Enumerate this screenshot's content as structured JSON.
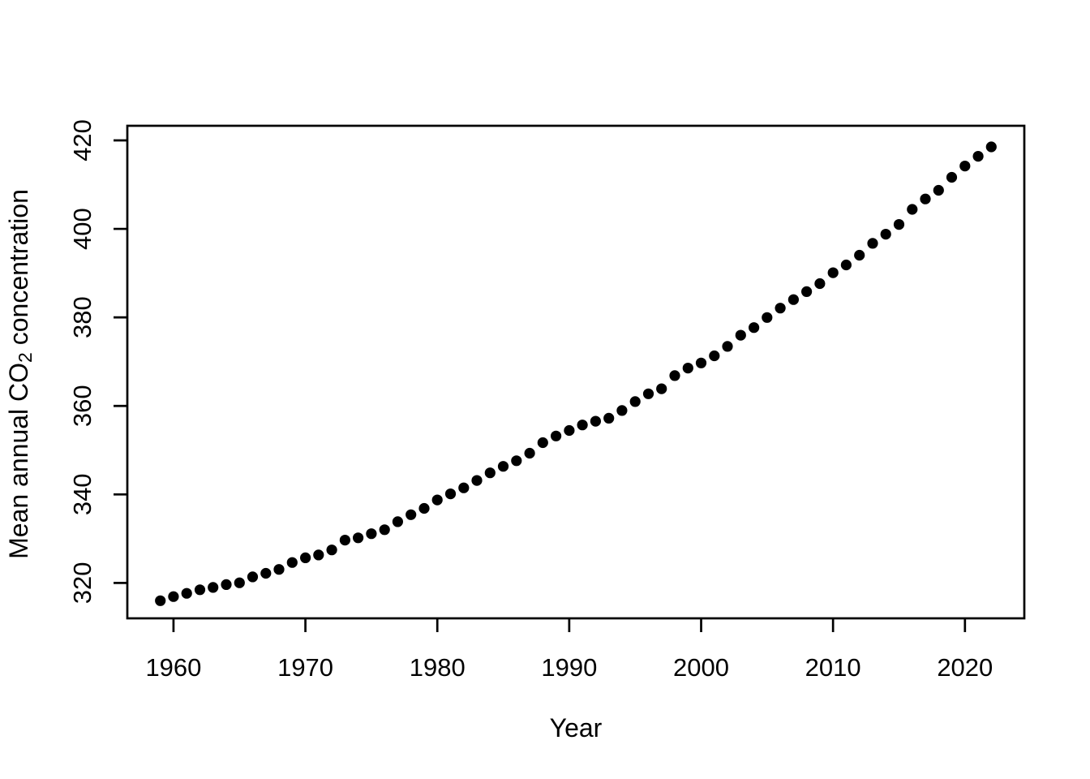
{
  "page": {
    "background_color": "#ffffff",
    "foreground_color": "#000000"
  },
  "chart_data": {
    "type": "scatter",
    "title": "",
    "xlabel": "Year",
    "ylabel": "Mean annual CO₂ concentration",
    "ylabel_parts": {
      "pre": "Mean annual CO",
      "sub": "2",
      "post": " concentration"
    },
    "x_ticks": [
      1960,
      1970,
      1980,
      1990,
      2000,
      2010,
      2020
    ],
    "y_ticks": [
      320,
      340,
      360,
      380,
      400,
      420
    ],
    "xlim": [
      1956.5,
      2024.5
    ],
    "ylim": [
      312.0,
      423.3
    ],
    "grid": false,
    "legend": "none",
    "point_style": "filled-circle",
    "point_color": "#000000",
    "x": [
      1959,
      1960,
      1961,
      1962,
      1963,
      1964,
      1965,
      1966,
      1967,
      1968,
      1969,
      1970,
      1971,
      1972,
      1973,
      1974,
      1975,
      1976,
      1977,
      1978,
      1979,
      1980,
      1981,
      1982,
      1983,
      1984,
      1985,
      1986,
      1987,
      1988,
      1989,
      1990,
      1991,
      1992,
      1993,
      1994,
      1995,
      1996,
      1997,
      1998,
      1999,
      2000,
      2001,
      2002,
      2003,
      2004,
      2005,
      2006,
      2007,
      2008,
      2009,
      2010,
      2011,
      2012,
      2013,
      2014,
      2015,
      2016,
      2017,
      2018,
      2019,
      2020,
      2021,
      2022
    ],
    "y": [
      315.98,
      316.91,
      317.64,
      318.45,
      318.99,
      319.62,
      320.04,
      321.37,
      322.18,
      323.05,
      324.62,
      325.68,
      326.32,
      327.46,
      329.68,
      330.19,
      331.12,
      332.03,
      333.84,
      335.41,
      336.84,
      338.76,
      340.12,
      341.48,
      343.15,
      344.87,
      346.35,
      347.61,
      349.31,
      351.69,
      353.2,
      354.45,
      355.7,
      356.54,
      357.21,
      358.96,
      360.97,
      362.74,
      363.88,
      366.84,
      368.54,
      369.71,
      371.32,
      373.45,
      375.98,
      377.7,
      379.98,
      382.09,
      384.02,
      385.83,
      387.64,
      390.1,
      391.85,
      394.06,
      396.74,
      398.81,
      401.01,
      404.41,
      406.76,
      408.72,
      411.65,
      414.21,
      416.41,
      418.53
    ]
  }
}
